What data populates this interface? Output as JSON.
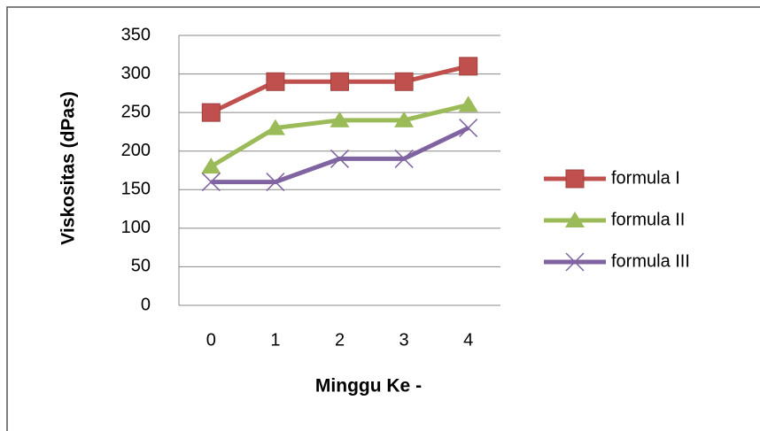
{
  "chart_data": {
    "type": "line",
    "xlabel": "Minggu Ke -",
    "ylabel": "Viskositas (dPas)",
    "categories": [
      "0",
      "1",
      "2",
      "3",
      "4"
    ],
    "series": [
      {
        "name": "formula I",
        "color": "#c0504d",
        "marker": "square",
        "values": [
          250,
          290,
          290,
          290,
          310
        ]
      },
      {
        "name": "formula II",
        "color": "#9bbb59",
        "marker": "triangle",
        "values": [
          180,
          230,
          240,
          240,
          260
        ]
      },
      {
        "name": "formula III",
        "color": "#8064a2",
        "marker": "x",
        "values": [
          160,
          160,
          190,
          190,
          230
        ]
      }
    ],
    "ylim": [
      0,
      350
    ],
    "yticks": [
      0,
      50,
      100,
      150,
      200,
      250,
      300,
      350
    ],
    "grid": true,
    "legend": "right"
  }
}
